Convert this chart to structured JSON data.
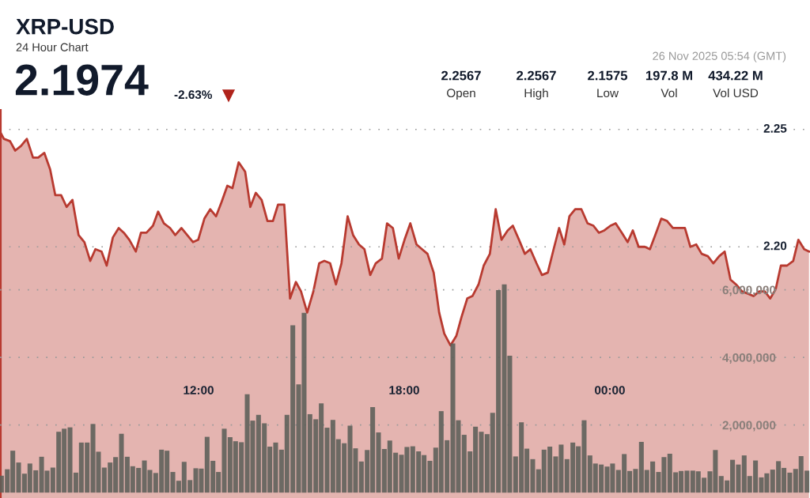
{
  "chart_data": {
    "type": "area",
    "title": "XRP-USD",
    "subtitle": "24 Hour Chart",
    "annotations": [
      "2.1974",
      "-2.63%",
      "2.2567",
      "Open",
      "2.2567",
      "High",
      "2.1575",
      "Low",
      "197.8 M",
      "Vol",
      "434.22 M",
      "Vol USD",
      "26 Nov 2025 05:54 (GMT)"
    ],
    "xlim": [
      6.207,
      29.84
    ],
    "xticks": [
      {
        "value": 12,
        "label": "12:00"
      },
      {
        "value": 18,
        "label": "18:00"
      },
      {
        "value": 24,
        "label": "00:00"
      }
    ],
    "ylim": [
      2.093,
      2.258
    ],
    "yticks": [
      {
        "value": 2.2,
        "label": "2.20"
      },
      2.25
    ],
    "y2lim": [
      -160000,
      11300000
    ],
    "y2ticks": [
      {
        "value": 2000000,
        "label": "2,000,000"
      },
      {
        "value": 4000000,
        "label": "4,000,000"
      },
      {
        "value": 6000000,
        "label": "6,000,000"
      }
    ],
    "grid": "y",
    "series": [
      {
        "color": "#b83a30",
        "x": [
          6.21,
          6.32,
          6.5,
          6.65,
          6.82,
          6.99,
          7.17,
          7.32,
          7.5,
          7.67,
          7.82,
          7.99,
          8.15,
          8.32,
          8.5,
          8.67,
          8.84,
          8.99,
          9.17,
          9.32,
          9.5,
          9.67,
          9.82,
          9.98,
          10.17,
          10.32,
          10.48,
          10.67,
          10.82,
          10.99,
          11.17,
          11.32,
          11.5,
          11.67,
          11.84,
          11.99,
          12.17,
          12.34,
          12.51,
          12.67,
          12.84,
          12.99,
          13.17,
          13.36,
          13.51,
          13.67,
          13.84,
          14.01,
          14.17,
          14.32,
          14.5,
          14.67,
          14.84,
          14.99,
          15.17,
          15.35,
          15.52,
          15.67,
          15.84,
          16.01,
          16.17,
          16.35,
          16.51,
          16.68,
          16.84,
          17.01,
          17.17,
          17.35,
          17.5,
          17.67,
          17.84,
          18.01,
          18.18,
          18.36,
          18.52,
          18.68,
          18.86,
          19.02,
          19.17,
          19.35,
          19.52,
          19.67,
          19.84,
          19.99,
          20.17,
          20.32,
          20.5,
          20.67,
          20.84,
          21.02,
          21.17,
          21.35,
          21.52,
          21.68,
          21.86,
          22.02,
          22.19,
          22.36,
          22.52,
          22.67,
          22.82,
          22.99,
          23.17,
          23.35,
          23.52,
          23.68,
          23.84,
          24.02,
          24.17,
          24.35,
          24.52,
          24.67,
          24.84,
          25.02,
          25.17,
          25.35,
          25.5,
          25.67,
          25.84,
          26.02,
          26.19,
          26.35,
          26.52,
          26.68,
          26.86,
          27.02,
          27.19,
          27.35,
          27.52,
          27.68,
          27.86,
          28.04,
          28.19,
          28.36,
          28.52,
          28.68,
          28.84,
          28.99,
          29.17,
          29.35,
          29.5,
          29.67,
          29.81
        ],
        "values": [
          2.249,
          2.246,
          2.245,
          2.241,
          2.243,
          2.246,
          2.238,
          2.238,
          2.24,
          2.233,
          2.222,
          2.222,
          2.217,
          2.22,
          2.205,
          2.202,
          2.194,
          2.199,
          2.198,
          2.192,
          2.204,
          2.208,
          2.206,
          2.203,
          2.198,
          2.206,
          2.206,
          2.209,
          2.215,
          2.21,
          2.208,
          2.205,
          2.208,
          2.205,
          2.202,
          2.203,
          2.212,
          2.216,
          2.213,
          2.219,
          2.226,
          2.225,
          2.236,
          2.232,
          2.217,
          2.223,
          2.22,
          2.211,
          2.211,
          2.218,
          2.218,
          2.178,
          2.185,
          2.181,
          2.172,
          2.181,
          2.193,
          2.194,
          2.193,
          2.184,
          2.193,
          2.213,
          2.205,
          2.201,
          2.199,
          2.188,
          2.193,
          2.195,
          2.21,
          2.208,
          2.195,
          2.203,
          2.21,
          2.201,
          2.199,
          2.197,
          2.189,
          2.172,
          2.163,
          2.158,
          2.162,
          2.17,
          2.178,
          2.179,
          2.184,
          2.192,
          2.197,
          2.216,
          2.203,
          2.207,
          2.209,
          2.203,
          2.197,
          2.199,
          2.193,
          2.188,
          2.189,
          2.199,
          2.208,
          2.201,
          2.213,
          2.216,
          2.216,
          2.21,
          2.209,
          2.206,
          2.207,
          2.209,
          2.21,
          2.206,
          2.202,
          2.207,
          2.2,
          2.2,
          2.199,
          2.206,
          2.212,
          2.211,
          2.208,
          2.208,
          2.208,
          2.2,
          2.201,
          2.197,
          2.196,
          2.193,
          2.196,
          2.198,
          2.186,
          2.184,
          2.181,
          2.18,
          2.179,
          2.181,
          2.181,
          2.178,
          2.182,
          2.192,
          2.192,
          2.194,
          2.203,
          2.199,
          2.198
        ]
      },
      {
        "type": "bar",
        "axis": "y2",
        "color": "#5b5e58",
        "x": [
          6.25,
          6.42,
          6.58,
          6.75,
          6.92,
          7.08,
          7.25,
          7.42,
          7.58,
          7.75,
          7.92,
          8.08,
          8.25,
          8.42,
          8.58,
          8.75,
          8.92,
          9.08,
          9.25,
          9.42,
          9.58,
          9.75,
          9.92,
          10.08,
          10.25,
          10.42,
          10.58,
          10.75,
          10.92,
          11.08,
          11.25,
          11.42,
          11.58,
          11.75,
          11.92,
          12.08,
          12.25,
          12.42,
          12.58,
          12.75,
          12.92,
          13.08,
          13.25,
          13.42,
          13.58,
          13.75,
          13.92,
          14.08,
          14.25,
          14.42,
          14.58,
          14.75,
          14.92,
          15.08,
          15.25,
          15.42,
          15.58,
          15.75,
          15.92,
          16.08,
          16.25,
          16.42,
          16.58,
          16.75,
          16.92,
          17.08,
          17.25,
          17.42,
          17.58,
          17.75,
          17.92,
          18.08,
          18.25,
          18.42,
          18.58,
          18.75,
          18.92,
          19.08,
          19.25,
          19.42,
          19.58,
          19.75,
          19.92,
          20.08,
          20.25,
          20.42,
          20.58,
          20.75,
          20.92,
          21.08,
          21.25,
          21.42,
          21.58,
          21.75,
          21.92,
          22.08,
          22.25,
          22.42,
          22.58,
          22.75,
          22.92,
          23.08,
          23.25,
          23.42,
          23.58,
          23.75,
          23.92,
          24.08,
          24.25,
          24.42,
          24.58,
          24.75,
          24.92,
          25.08,
          25.25,
          25.42,
          25.58,
          25.75,
          25.92,
          26.08,
          26.25,
          26.42,
          26.58,
          26.75,
          26.92,
          27.08,
          27.25,
          27.42,
          27.58,
          27.75,
          27.92,
          28.08,
          28.25,
          28.42,
          28.58,
          28.75,
          28.92,
          29.08,
          29.25,
          29.42,
          29.58,
          29.75
        ],
        "values": [
          500000,
          690000,
          1240000,
          890000,
          560000,
          860000,
          660000,
          1060000,
          650000,
          740000,
          1800000,
          1890000,
          1930000,
          590000,
          1480000,
          1480000,
          2030000,
          1210000,
          740000,
          890000,
          1050000,
          1740000,
          1060000,
          780000,
          730000,
          950000,
          670000,
          580000,
          1270000,
          1240000,
          610000,
          350000,
          910000,
          370000,
          720000,
          710000,
          1650000,
          940000,
          610000,
          1890000,
          1640000,
          1520000,
          1490000,
          2910000,
          2130000,
          2300000,
          2050000,
          1360000,
          1480000,
          1270000,
          2300000,
          4950000,
          3200000,
          5320000,
          2320000,
          2170000,
          2640000,
          1920000,
          2150000,
          1580000,
          1460000,
          1980000,
          1310000,
          920000,
          1260000,
          2530000,
          1780000,
          1290000,
          1540000,
          1180000,
          1120000,
          1350000,
          1370000,
          1220000,
          1110000,
          940000,
          1330000,
          2410000,
          1550000,
          4410000,
          2140000,
          1710000,
          1220000,
          1950000,
          1800000,
          1730000,
          2360000,
          5990000,
          6160000,
          4050000,
          1070000,
          2080000,
          1300000,
          990000,
          690000,
          1270000,
          1360000,
          1070000,
          1420000,
          990000,
          1480000,
          1370000,
          2140000,
          1100000,
          860000,
          830000,
          770000,
          860000,
          670000,
          1140000,
          640000,
          700000,
          1500000,
          670000,
          920000,
          610000,
          1050000,
          1150000,
          600000,
          640000,
          650000,
          650000,
          630000,
          440000,
          630000,
          1260000,
          490000,
          360000,
          970000,
          830000,
          1100000,
          490000,
          950000,
          450000,
          570000,
          680000,
          930000,
          730000,
          590000,
          700000,
          1080000,
          650000
        ]
      }
    ]
  }
}
